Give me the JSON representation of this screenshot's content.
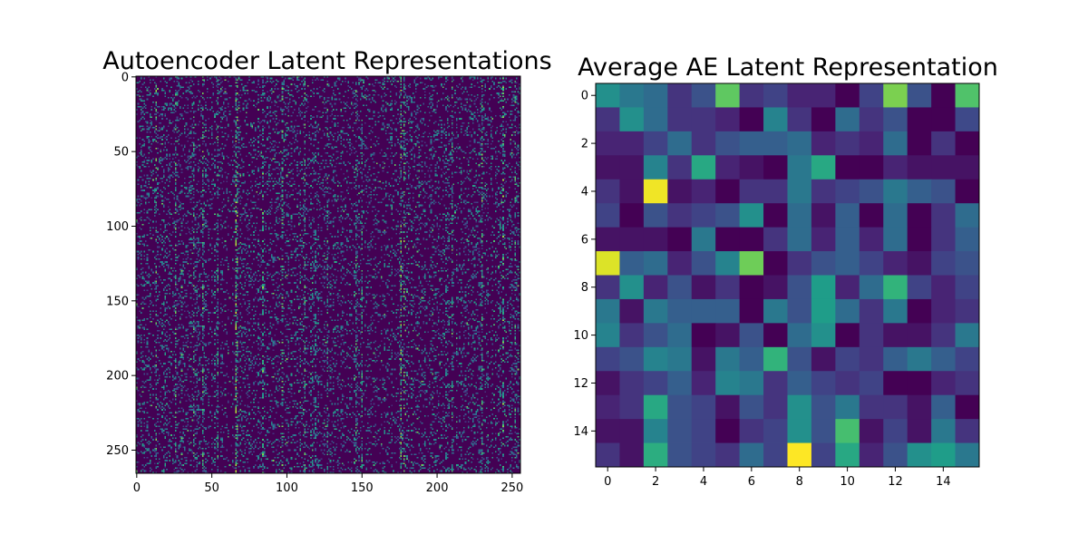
{
  "chart_data": [
    {
      "type": "heatmap",
      "title": "Autoencoder Latent Representations",
      "xlabel": "",
      "ylabel": "",
      "rows": 266,
      "cols": 256,
      "xlim": [
        -0.5,
        255.5
      ],
      "ylim": [
        265.5,
        -0.5
      ],
      "xticks": [
        0,
        50,
        100,
        150,
        200,
        250
      ],
      "yticks": [
        0,
        50,
        100,
        150,
        200,
        250
      ],
      "colormap": "viridis",
      "value_range": [
        0,
        1
      ],
      "description_level": "mostly near-zero activations with sparse brighter entries and column-wise vertical streaks",
      "column_activity": {
        "columns": [
          13,
          26,
          38,
          44,
          54,
          66,
          67,
          84,
          97,
          112,
          127,
          146,
          150,
          176,
          178,
          210,
          230,
          244,
          252
        ],
        "level": [
          0.35,
          0.3,
          0.3,
          0.35,
          0.3,
          0.45,
          0.4,
          0.35,
          0.3,
          0.3,
          0.3,
          0.3,
          0.3,
          0.4,
          0.35,
          0.3,
          0.35,
          0.35,
          0.3
        ]
      },
      "grid": false
    },
    {
      "type": "heatmap",
      "title": "Average AE Latent Representation",
      "xlabel": "",
      "ylabel": "",
      "rows": 16,
      "cols": 16,
      "xticks": [
        0,
        2,
        4,
        6,
        8,
        10,
        12,
        14
      ],
      "yticks": [
        0,
        2,
        4,
        6,
        8,
        10,
        12,
        14
      ],
      "colormap": "viridis",
      "value_range": [
        0,
        1
      ],
      "grid": false,
      "values": [
        [
          0.5,
          0.4,
          0.35,
          0.15,
          0.25,
          0.75,
          0.15,
          0.2,
          0.1,
          0.1,
          0.0,
          0.2,
          0.8,
          0.25,
          0.0,
          0.72
        ],
        [
          0.15,
          0.5,
          0.35,
          0.15,
          0.15,
          0.1,
          0.0,
          0.45,
          0.15,
          0.0,
          0.35,
          0.15,
          0.25,
          0.0,
          0.0,
          0.22
        ],
        [
          0.1,
          0.1,
          0.2,
          0.35,
          0.15,
          0.25,
          0.3,
          0.3,
          0.35,
          0.1,
          0.15,
          0.1,
          0.35,
          0.0,
          0.15,
          0.0
        ],
        [
          0.05,
          0.05,
          0.45,
          0.15,
          0.6,
          0.1,
          0.05,
          0.0,
          0.4,
          0.6,
          0.0,
          0.0,
          0.1,
          0.05,
          0.05,
          0.05
        ],
        [
          0.15,
          0.05,
          0.98,
          0.05,
          0.1,
          0.0,
          0.15,
          0.15,
          0.4,
          0.15,
          0.2,
          0.25,
          0.4,
          0.3,
          0.25,
          0.0
        ],
        [
          0.2,
          0.0,
          0.25,
          0.15,
          0.2,
          0.25,
          0.5,
          0.0,
          0.35,
          0.05,
          0.3,
          0.0,
          0.35,
          0.0,
          0.15,
          0.35
        ],
        [
          0.05,
          0.05,
          0.05,
          0.0,
          0.4,
          0.0,
          0.0,
          0.15,
          0.35,
          0.1,
          0.3,
          0.1,
          0.35,
          0.0,
          0.15,
          0.3
        ],
        [
          0.95,
          0.3,
          0.35,
          0.1,
          0.25,
          0.45,
          0.78,
          0.0,
          0.15,
          0.25,
          0.3,
          0.2,
          0.1,
          0.05,
          0.2,
          0.25
        ],
        [
          0.15,
          0.5,
          0.1,
          0.25,
          0.05,
          0.15,
          0.0,
          0.05,
          0.25,
          0.55,
          0.1,
          0.35,
          0.65,
          0.2,
          0.1,
          0.2
        ],
        [
          0.4,
          0.05,
          0.4,
          0.3,
          0.3,
          0.3,
          0.0,
          0.4,
          0.25,
          0.55,
          0.35,
          0.15,
          0.4,
          0.0,
          0.1,
          0.15
        ],
        [
          0.45,
          0.15,
          0.25,
          0.35,
          0.0,
          0.05,
          0.25,
          0.0,
          0.35,
          0.5,
          0.0,
          0.15,
          0.05,
          0.05,
          0.15,
          0.4
        ],
        [
          0.2,
          0.25,
          0.45,
          0.4,
          0.05,
          0.4,
          0.3,
          0.65,
          0.25,
          0.05,
          0.2,
          0.15,
          0.3,
          0.4,
          0.3,
          0.2
        ],
        [
          0.05,
          0.15,
          0.2,
          0.3,
          0.1,
          0.45,
          0.4,
          0.15,
          0.3,
          0.2,
          0.15,
          0.2,
          0.0,
          0.0,
          0.1,
          0.15
        ],
        [
          0.1,
          0.15,
          0.6,
          0.25,
          0.2,
          0.05,
          0.25,
          0.15,
          0.5,
          0.25,
          0.4,
          0.15,
          0.15,
          0.05,
          0.3,
          0.0
        ],
        [
          0.05,
          0.05,
          0.45,
          0.25,
          0.2,
          0.0,
          0.15,
          0.2,
          0.5,
          0.25,
          0.7,
          0.05,
          0.2,
          0.05,
          0.4,
          0.15
        ],
        [
          0.15,
          0.05,
          0.62,
          0.25,
          0.2,
          0.15,
          0.35,
          0.2,
          1.0,
          0.2,
          0.6,
          0.1,
          0.25,
          0.5,
          0.55,
          0.4
        ]
      ]
    }
  ]
}
